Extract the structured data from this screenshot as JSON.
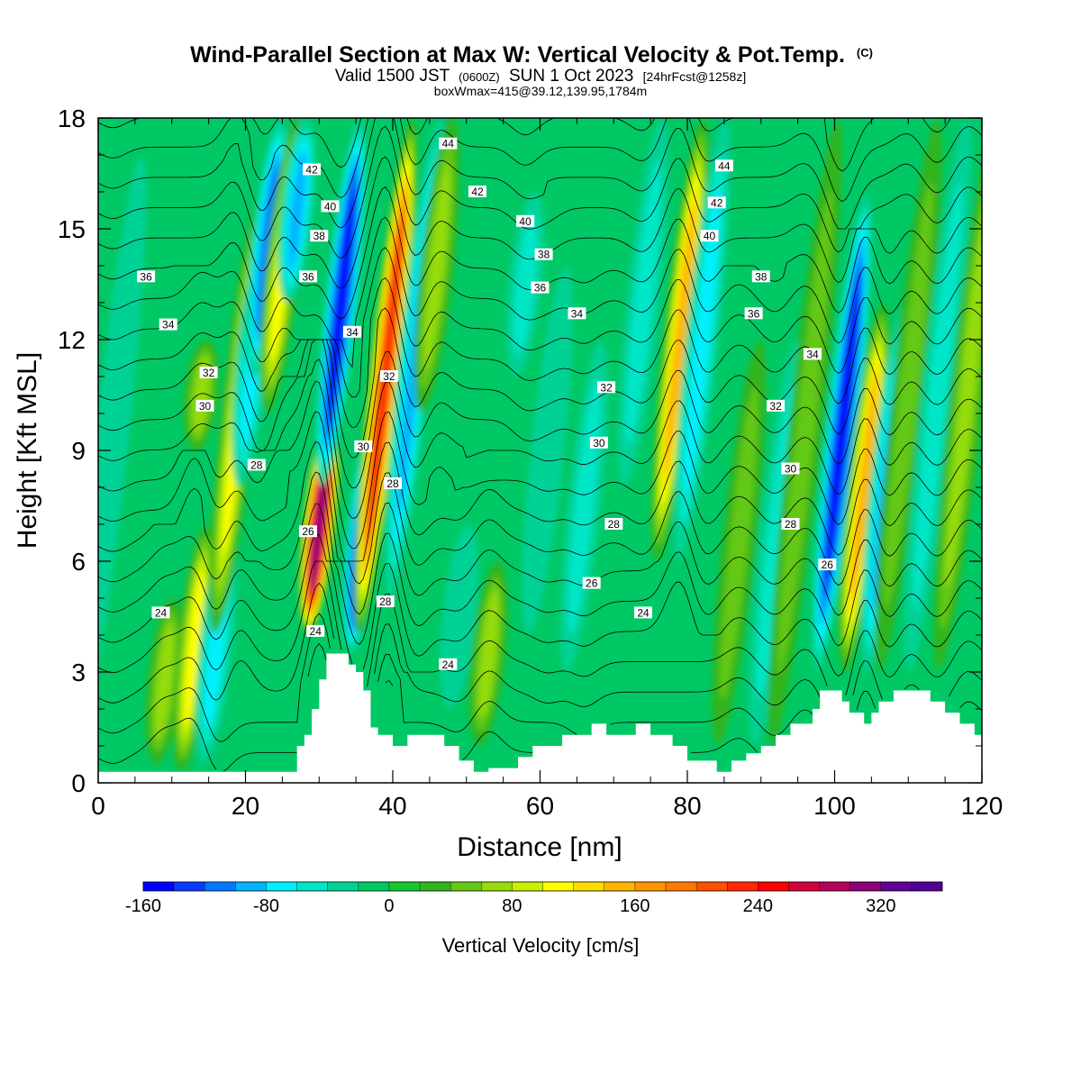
{
  "chart_data": {
    "type": "heatmap",
    "title": "Wind-Parallel Section at Max W: Vertical Velocity & Pot.Temp.",
    "title_suffix": "(C)",
    "subtitle": {
      "prefix": "Valid 1500 JST",
      "zulu": "(0600Z)",
      "date": "SUN 1 Oct 2023",
      "fcst": "[24hrFcst@1258z]"
    },
    "subtitle2": "boxWmax=415@39.12,139.95,1784m",
    "xlabel": "Distance [nm]",
    "ylabel": "Height [Kft MSL]",
    "xlim": [
      0,
      120
    ],
    "ylim": [
      0,
      18
    ],
    "x_ticks": [
      "0",
      "20",
      "40",
      "60",
      "80",
      "100",
      "120"
    ],
    "y_ticks": [
      "0",
      "3",
      "6",
      "9",
      "12",
      "15",
      "18"
    ],
    "colorbar": {
      "label": "Vertical Velocity [cm/s]",
      "min": -160,
      "max": 360,
      "step": 20,
      "tick_labels": [
        "-160",
        "-80",
        "0",
        "80",
        "160",
        "240",
        "320"
      ],
      "tick_values": [
        -160,
        -80,
        0,
        80,
        160,
        240,
        320
      ],
      "colors": [
        "#0000ff",
        "#0a3cff",
        "#0078ff",
        "#00b4ff",
        "#00f0ff",
        "#00e6c8",
        "#00d296",
        "#00c864",
        "#14c832",
        "#32b41e",
        "#64c814",
        "#96dc0a",
        "#c8f000",
        "#ffff00",
        "#ffdc00",
        "#ffb400",
        "#ff9600",
        "#ff7800",
        "#ff5000",
        "#ff2800",
        "#ff0000",
        "#d2003c",
        "#b4005a",
        "#8c0078",
        "#640096",
        "#500096"
      ]
    },
    "velocity_features": [
      {
        "x": 2,
        "zmin": 2,
        "zmax": 17,
        "w": -30
      },
      {
        "x": 9,
        "zmin": 0.5,
        "zmax": 5,
        "w": 60
      },
      {
        "x": 13,
        "zmin": 0.3,
        "zmax": 7,
        "w": 100
      },
      {
        "x": 14,
        "zmin": 9,
        "zmax": 12,
        "w": 70
      },
      {
        "x": 16,
        "zmin": 0.5,
        "zmax": 7,
        "w": -70
      },
      {
        "x": 19,
        "zmin": 4,
        "zmax": 16,
        "w": 100
      },
      {
        "x": 21,
        "zmin": 8,
        "zmax": 15,
        "w": -60
      },
      {
        "x": 23,
        "zmin": 11,
        "zmax": 18,
        "w": -100
      },
      {
        "x": 25,
        "zmin": 10,
        "zmax": 18,
        "w": 100
      },
      {
        "x": 27,
        "zmin": 13,
        "zmax": 18,
        "w": -80
      },
      {
        "x": 30,
        "zmin": 4,
        "zmax": 10,
        "w": 300
      },
      {
        "x": 33,
        "zmin": 8,
        "zmax": 18,
        "w": -140
      },
      {
        "x": 36,
        "zmin": 3.5,
        "zmax": 10,
        "w": -160
      },
      {
        "x": 39,
        "zmin": 4,
        "zmax": 18,
        "w": 230
      },
      {
        "x": 43,
        "zmin": 5,
        "zmax": 18,
        "w": -80
      },
      {
        "x": 46,
        "zmin": 10,
        "zmax": 18,
        "w": 60
      },
      {
        "x": 49,
        "zmin": 2,
        "zmax": 7,
        "w": -30
      },
      {
        "x": 53,
        "zmin": 1,
        "zmax": 6,
        "w": 60
      },
      {
        "x": 58,
        "zmin": 11,
        "zmax": 16,
        "w": -50
      },
      {
        "x": 61,
        "zmin": 4,
        "zmax": 14,
        "w": -30
      },
      {
        "x": 66,
        "zmin": 3,
        "zmax": 12,
        "w": -40
      },
      {
        "x": 74,
        "zmin": 8,
        "zmax": 18,
        "w": -40
      },
      {
        "x": 79,
        "zmin": 6,
        "zmax": 18,
        "w": 150
      },
      {
        "x": 82,
        "zmin": 6,
        "zmax": 18,
        "w": -60
      },
      {
        "x": 87,
        "zmin": 1,
        "zmax": 12,
        "w": 40
      },
      {
        "x": 92,
        "zmin": 1,
        "zmax": 12,
        "w": -40
      },
      {
        "x": 96,
        "zmin": 1,
        "zmax": 18,
        "w": 40
      },
      {
        "x": 101,
        "zmin": 3,
        "zmax": 16,
        "w": -150
      },
      {
        "x": 104,
        "zmin": 3,
        "zmax": 13,
        "w": 140
      },
      {
        "x": 107,
        "zmin": 3,
        "zmax": 13,
        "w": -80
      },
      {
        "x": 110,
        "zmin": 3,
        "zmax": 18,
        "w": 40
      },
      {
        "x": 114,
        "zmin": 3,
        "zmax": 18,
        "w": -50
      },
      {
        "x": 118,
        "zmin": 3,
        "zmax": 18,
        "w": 60
      }
    ],
    "theta_contours": {
      "levels": [
        24,
        25,
        26,
        27,
        28,
        29,
        30,
        31,
        32,
        33,
        34,
        35,
        36,
        37,
        38,
        39,
        40,
        41,
        42,
        43,
        44,
        45
      ]
    },
    "contour_labels": [
      {
        "text": "24",
        "x": 8.5,
        "z": 4.6
      },
      {
        "text": "24",
        "x": 29.5,
        "z": 4.1
      },
      {
        "text": "24",
        "x": 47.5,
        "z": 3.2
      },
      {
        "text": "24",
        "x": 74,
        "z": 4.6
      },
      {
        "text": "26",
        "x": 28.5,
        "z": 6.8
      },
      {
        "text": "26",
        "x": 67,
        "z": 5.4
      },
      {
        "text": "26",
        "x": 99,
        "z": 5.9
      },
      {
        "text": "28",
        "x": 39,
        "z": 4.9
      },
      {
        "text": "28",
        "x": 21.5,
        "z": 8.6
      },
      {
        "text": "28",
        "x": 40,
        "z": 8.1
      },
      {
        "text": "28",
        "x": 70,
        "z": 7.0
      },
      {
        "text": "28",
        "x": 94,
        "z": 7.0
      },
      {
        "text": "30",
        "x": 14.5,
        "z": 10.2
      },
      {
        "text": "30",
        "x": 36,
        "z": 9.1
      },
      {
        "text": "30",
        "x": 68,
        "z": 9.2
      },
      {
        "text": "30",
        "x": 94,
        "z": 8.5
      },
      {
        "text": "32",
        "x": 15,
        "z": 11.1
      },
      {
        "text": "32",
        "x": 39.5,
        "z": 11.0
      },
      {
        "text": "32",
        "x": 69,
        "z": 10.7
      },
      {
        "text": "32",
        "x": 92,
        "z": 10.2
      },
      {
        "text": "34",
        "x": 9.5,
        "z": 12.4
      },
      {
        "text": "34",
        "x": 34.5,
        "z": 12.2
      },
      {
        "text": "34",
        "x": 65,
        "z": 12.7
      },
      {
        "text": "34",
        "x": 97,
        "z": 11.6
      },
      {
        "text": "36",
        "x": 6.5,
        "z": 13.7
      },
      {
        "text": "36",
        "x": 28.5,
        "z": 13.7
      },
      {
        "text": "36",
        "x": 60,
        "z": 13.4
      },
      {
        "text": "36",
        "x": 89,
        "z": 12.7
      },
      {
        "text": "38",
        "x": 30,
        "z": 14.8
      },
      {
        "text": "38",
        "x": 60.5,
        "z": 14.3
      },
      {
        "text": "38",
        "x": 90,
        "z": 13.7
      },
      {
        "text": "40",
        "x": 31.5,
        "z": 15.6
      },
      {
        "text": "40",
        "x": 58,
        "z": 15.2
      },
      {
        "text": "40",
        "x": 83,
        "z": 14.8
      },
      {
        "text": "42",
        "x": 29,
        "z": 16.6
      },
      {
        "text": "42",
        "x": 51.5,
        "z": 16.0
      },
      {
        "text": "42",
        "x": 84,
        "z": 15.7
      },
      {
        "text": "44",
        "x": 47.5,
        "z": 17.3
      },
      {
        "text": "44",
        "x": 85,
        "z": 16.7
      }
    ],
    "terrain": [
      [
        0,
        0.3
      ],
      [
        2,
        0.3
      ],
      [
        4,
        0.3
      ],
      [
        6,
        0.3
      ],
      [
        8,
        0.3
      ],
      [
        10,
        0.3
      ],
      [
        12,
        0.3
      ],
      [
        14,
        0.3
      ],
      [
        16,
        0.3
      ],
      [
        18,
        0.3
      ],
      [
        20,
        0.3
      ],
      [
        22,
        0.3
      ],
      [
        24,
        0.3
      ],
      [
        26,
        0.3
      ],
      [
        27,
        0.3
      ],
      [
        27,
        1.0
      ],
      [
        28,
        1.0
      ],
      [
        28,
        1.3
      ],
      [
        29,
        1.3
      ],
      [
        29,
        2.0
      ],
      [
        30,
        2.0
      ],
      [
        30,
        2.8
      ],
      [
        31,
        2.8
      ],
      [
        31,
        3.5
      ],
      [
        34,
        3.5
      ],
      [
        34,
        3.2
      ],
      [
        35,
        3.2
      ],
      [
        35,
        3.0
      ],
      [
        36,
        3.0
      ],
      [
        36,
        2.5
      ],
      [
        37,
        2.5
      ],
      [
        37,
        1.5
      ],
      [
        38,
        1.5
      ],
      [
        38,
        1.3
      ],
      [
        40,
        1.3
      ],
      [
        40,
        1.0
      ],
      [
        42,
        1.0
      ],
      [
        42,
        1.3
      ],
      [
        47,
        1.3
      ],
      [
        47,
        1.0
      ],
      [
        49,
        1.0
      ],
      [
        49,
        0.6
      ],
      [
        51,
        0.6
      ],
      [
        51,
        0.3
      ],
      [
        53,
        0.3
      ],
      [
        53,
        0.4
      ],
      [
        57,
        0.4
      ],
      [
        57,
        0.7
      ],
      [
        59,
        0.7
      ],
      [
        59,
        1.0
      ],
      [
        63,
        1.0
      ],
      [
        63,
        1.3
      ],
      [
        67,
        1.3
      ],
      [
        67,
        1.6
      ],
      [
        69,
        1.6
      ],
      [
        69,
        1.3
      ],
      [
        73,
        1.3
      ],
      [
        73,
        1.6
      ],
      [
        75,
        1.6
      ],
      [
        75,
        1.3
      ],
      [
        78,
        1.3
      ],
      [
        78,
        1.0
      ],
      [
        80,
        1.0
      ],
      [
        80,
        0.6
      ],
      [
        84,
        0.6
      ],
      [
        84,
        0.3
      ],
      [
        86,
        0.3
      ],
      [
        86,
        0.6
      ],
      [
        88,
        0.6
      ],
      [
        88,
        0.8
      ],
      [
        90,
        0.8
      ],
      [
        90,
        1.0
      ],
      [
        92,
        1.0
      ],
      [
        92,
        1.3
      ],
      [
        94,
        1.3
      ],
      [
        94,
        1.6
      ],
      [
        97,
        1.6
      ],
      [
        97,
        2.0
      ],
      [
        98,
        2.0
      ],
      [
        98,
        2.5
      ],
      [
        101,
        2.5
      ],
      [
        101,
        2.2
      ],
      [
        102,
        2.2
      ],
      [
        102,
        1.9
      ],
      [
        104,
        1.9
      ],
      [
        104,
        1.6
      ],
      [
        105,
        1.6
      ],
      [
        105,
        1.9
      ],
      [
        106,
        1.9
      ],
      [
        106,
        2.2
      ],
      [
        108,
        2.2
      ],
      [
        108,
        2.5
      ],
      [
        113,
        2.5
      ],
      [
        113,
        2.2
      ],
      [
        115,
        2.2
      ],
      [
        115,
        1.9
      ],
      [
        117,
        1.9
      ],
      [
        117,
        1.6
      ],
      [
        119,
        1.6
      ],
      [
        119,
        1.3
      ],
      [
        120,
        1.3
      ]
    ]
  }
}
